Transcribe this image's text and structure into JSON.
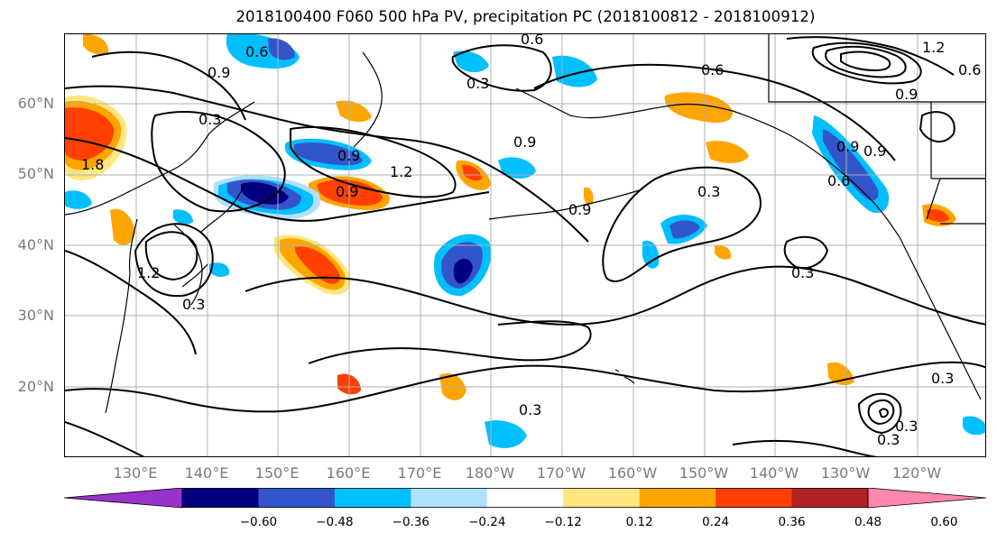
{
  "title": "2018100400 F060 500 hPa PV, precipitation PC (2018100812 - 2018100912)",
  "map": {
    "projection": "lat-lon",
    "lon_range": "120°E–115°W",
    "lat_range": "10°N–70°N",
    "gridlines": true,
    "coastlines": true
  },
  "lat_labels": [
    "60°N",
    "50°N",
    "40°N",
    "30°N",
    "20°N"
  ],
  "lon_labels": [
    "130°E",
    "140°E",
    "150°E",
    "160°E",
    "170°E",
    "180°W",
    "170°W",
    "160°W",
    "150°W",
    "140°W",
    "130°W",
    "120°W"
  ],
  "contour_labels": [
    "0.6",
    "0.9",
    "0.3",
    "0.9",
    "0.6",
    "0.6",
    "1.2",
    "1.8",
    "0.9",
    "0.3",
    "0.9",
    "1.2",
    "0.9",
    "0.3",
    "0.9",
    "0.3",
    "0.6",
    "0.9",
    "0.3",
    "0.3",
    "0.3",
    "0.3",
    "1.2",
    "0.3",
    "0.9",
    "0.6"
  ],
  "colorbar": {
    "ticks": [
      "−0.60",
      "−0.48",
      "−0.36",
      "−0.24",
      "−0.12",
      "0.12",
      "0.24",
      "0.36",
      "0.48",
      "0.60"
    ],
    "colors": [
      "#9933cc",
      "#000080",
      "#3355cc",
      "#00bfff",
      "#b0e0ff",
      "#ffffff",
      "#ffe680",
      "#ffa500",
      "#ff4000",
      "#b22222",
      "#ff88aa"
    ],
    "extend": "both"
  },
  "chart_data": {
    "type": "heatmap",
    "title": "2018100400 F060 500 hPa PV, precipitation PC (2018100812 - 2018100912)",
    "fields": [
      "500 hPa PV (contours)",
      "precipitation PC (shaded)"
    ],
    "contour_levels": [
      0.3,
      0.6,
      0.9,
      1.2,
      1.8
    ],
    "shading_levels": [
      -0.6,
      -0.48,
      -0.36,
      -0.24,
      -0.12,
      0.12,
      0.24,
      0.36,
      0.48,
      0.6
    ],
    "xlim": [
      "120°E",
      "115°W"
    ],
    "ylim": [
      "10°N",
      "70°N"
    ]
  }
}
